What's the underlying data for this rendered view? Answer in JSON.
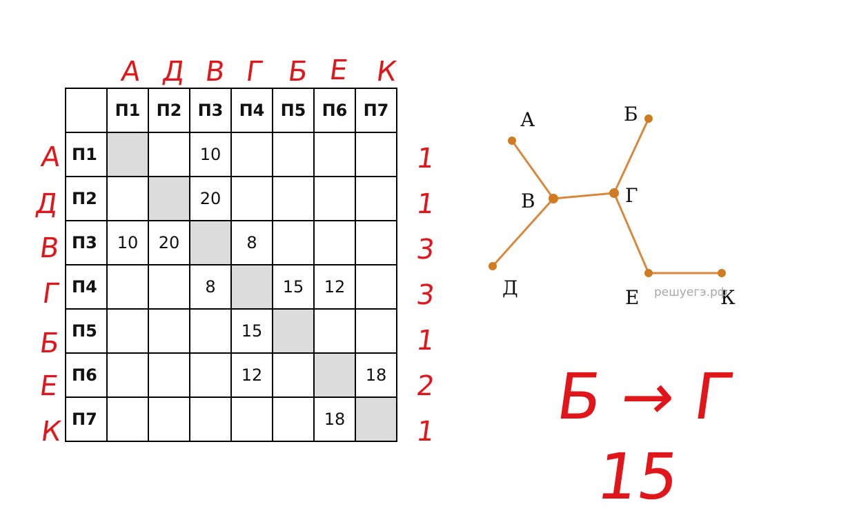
{
  "table": {
    "headers": [
      "П1",
      "П2",
      "П3",
      "П4",
      "П5",
      "П6",
      "П7"
    ],
    "rows": [
      {
        "label": "П1",
        "cells": [
          "",
          "",
          "10",
          "",
          "",
          "",
          ""
        ]
      },
      {
        "label": "П2",
        "cells": [
          "",
          "",
          "20",
          "",
          "",
          "",
          ""
        ]
      },
      {
        "label": "П3",
        "cells": [
          "10",
          "20",
          "",
          "8",
          "",
          "",
          ""
        ]
      },
      {
        "label": "П4",
        "cells": [
          "",
          "",
          "8",
          "",
          "15",
          "12",
          ""
        ]
      },
      {
        "label": "П5",
        "cells": [
          "",
          "",
          "",
          "15",
          "",
          "",
          ""
        ]
      },
      {
        "label": "П6",
        "cells": [
          "",
          "",
          "",
          "12",
          "",
          "",
          "18"
        ]
      },
      {
        "label": "П7",
        "cells": [
          "",
          "",
          "",
          "",
          "",
          "18",
          ""
        ]
      }
    ]
  },
  "annotations": {
    "column_letters": [
      "А",
      "Д",
      "В",
      "Г",
      "Б",
      "Е",
      "К"
    ],
    "row_letters": [
      "А",
      "Д",
      "В",
      "Г",
      "Б",
      "Е",
      "К"
    ],
    "row_degrees": [
      "1",
      "1",
      "3",
      "3",
      "1",
      "2",
      "1"
    ],
    "answer_route": "Б → Г",
    "answer_value": "15"
  },
  "graph": {
    "nodes": [
      {
        "id": "А",
        "label": "А"
      },
      {
        "id": "Б",
        "label": "Б"
      },
      {
        "id": "В",
        "label": "В"
      },
      {
        "id": "Г",
        "label": "Г"
      },
      {
        "id": "Д",
        "label": "Д"
      },
      {
        "id": "Е",
        "label": "Е"
      },
      {
        "id": "К",
        "label": "К"
      }
    ],
    "edges": [
      [
        "А",
        "В"
      ],
      [
        "В",
        "Д"
      ],
      [
        "В",
        "Г"
      ],
      [
        "Г",
        "Б"
      ],
      [
        "Г",
        "Е"
      ],
      [
        "Е",
        "К"
      ]
    ],
    "watermark": "решуегэ.рф",
    "edge_color": "#d8883a",
    "node_color": "#d07a22"
  },
  "colors": {
    "annotation": "#e0161b",
    "diagonal": "#dcdcdc"
  }
}
